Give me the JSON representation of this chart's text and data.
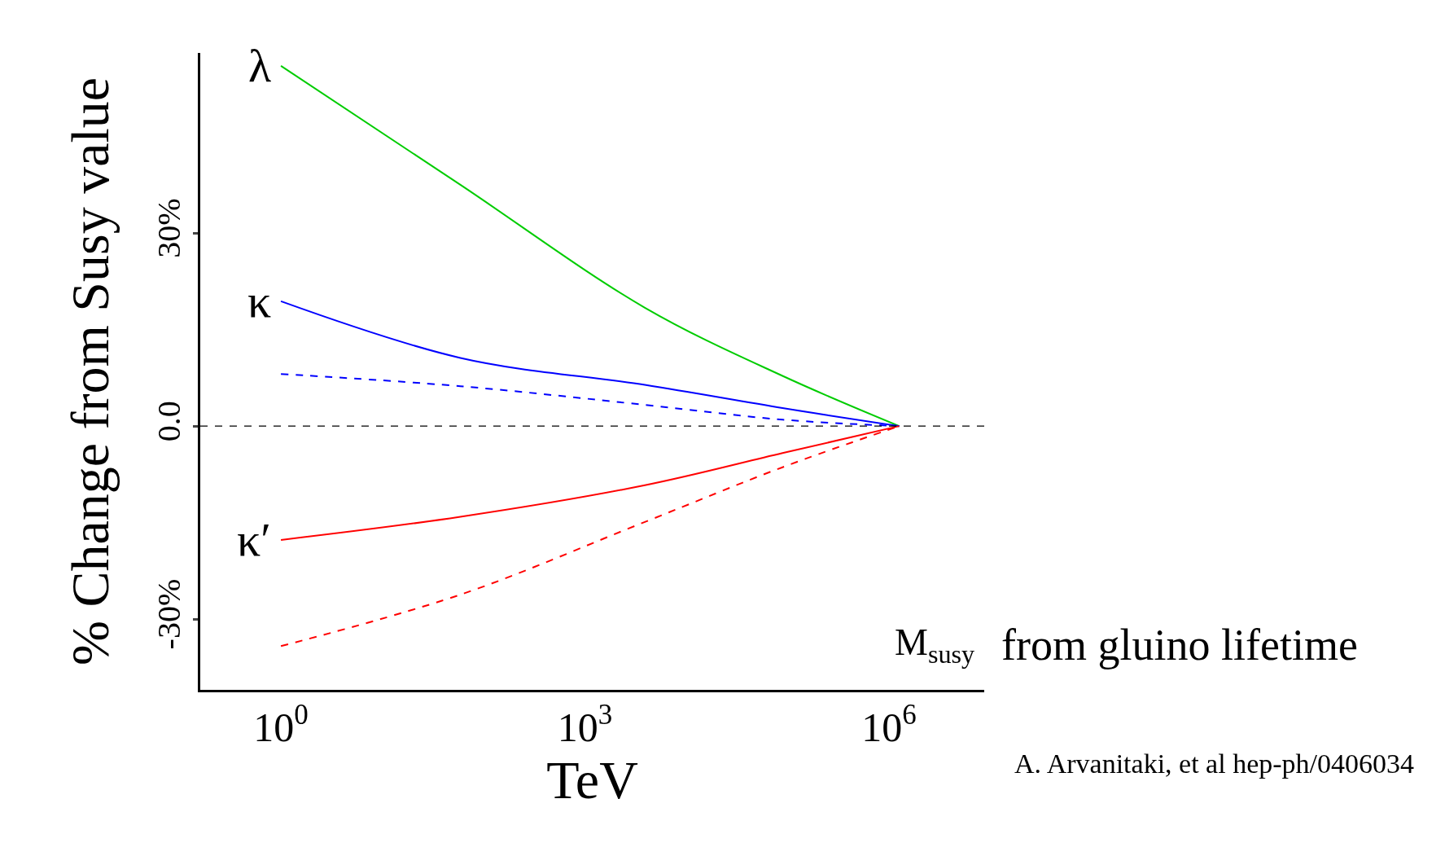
{
  "chart_data": {
    "type": "line",
    "xlabel": "TeV",
    "ylabel": "% Change from Susy value",
    "log": "x",
    "xlim": [
      0.16,
      8700000
    ],
    "ylim": [
      -41,
      58
    ],
    "xticks": [
      {
        "value": 1,
        "label": "10$^{0}$"
      },
      {
        "value": 1000,
        "label": "10$^{3}$"
      },
      {
        "value": 1000000,
        "label": "10$^{6}$"
      }
    ],
    "yticks": [
      {
        "value": -30,
        "label": "-30%"
      },
      {
        "value": 0,
        "label": "0.0"
      },
      {
        "value": 30,
        "label": "30%"
      }
    ],
    "marker": "none",
    "x": [
      1,
      59,
      3900,
      89000,
      1260000
    ],
    "series": [
      {
        "name": "λ",
        "color": "#00cc00",
        "values": [
          56,
          37.5,
          18.4,
          7.8,
          0
        ],
        "line_style": "solid"
      },
      {
        "name": "κ",
        "color": "#0000ff",
        "values": [
          19.4,
          10.6,
          6.4,
          2.8,
          0
        ],
        "line_style": "solid"
      },
      {
        "color": "#0000ff",
        "values": [
          8.1,
          6.2,
          3.3,
          1.0,
          0
        ],
        "line_style": "dashed"
      },
      {
        "name": "κ′",
        "color": "#ff0000",
        "values": [
          -17.7,
          -14.1,
          -9.2,
          -4.2,
          0
        ],
        "line_style": "solid"
      },
      {
        "color": "#ff0000",
        "values": [
          -34.2,
          -26.2,
          -14.9,
          -6.4,
          0
        ],
        "line_style": "dashed"
      }
    ],
    "ref_lines": [
      {
        "axis": "y",
        "value": 0,
        "color": "#000000",
        "line_style": "dashed"
      }
    ],
    "annotations": [
      "M$_{susy}$",
      "from gluino lifetime",
      "A. Arvanitaki, et al hep-ph/0406034"
    ]
  }
}
